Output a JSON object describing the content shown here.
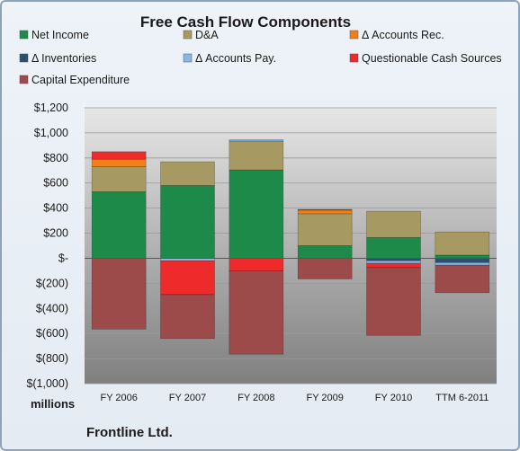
{
  "chart_data": {
    "type": "bar",
    "stacked": true,
    "title": "Free Cash Flow Components",
    "categories": [
      "FY 2006",
      "FY 2007",
      "FY 2008",
      "FY 2009",
      "FY 2010",
      "TTM 6-2011"
    ],
    "series": [
      {
        "name": "Net Income",
        "color": "#1e8a4a",
        "values": [
          530,
          580,
          705,
          100,
          165,
          25
        ]
      },
      {
        "name": "D&A",
        "color": "#a69a62",
        "values": [
          200,
          190,
          230,
          255,
          210,
          185
        ]
      },
      {
        "name": "Δ Accounts Rec.",
        "color": "#f07f18",
        "values": [
          60,
          0,
          0,
          30,
          0,
          0
        ]
      },
      {
        "name": "Δ Inventories",
        "color": "#2c4f6b",
        "values": [
          0,
          0,
          0,
          0,
          -20,
          -35
        ]
      },
      {
        "name": "Δ Accounts Pay.",
        "color": "#8eb4e3",
        "values": [
          0,
          -20,
          10,
          0,
          -20,
          -20
        ]
      },
      {
        "name": "Questionable Cash Sources",
        "color": "#ee2a2a",
        "values": [
          60,
          -270,
          -100,
          5,
          -35,
          0
        ]
      },
      {
        "name": "Capital Expenditure",
        "color": "#9c4a4a",
        "values": [
          -565,
          -350,
          -665,
          -165,
          -540,
          -220
        ]
      }
    ],
    "ylim": [
      -1000,
      1200
    ],
    "yticks": [
      "$1,200",
      "$1,000",
      "$800",
      "$600",
      "$400",
      "$200",
      "$-",
      "$(200)",
      "$(400)",
      "$(600)",
      "$(800)",
      "$(1,000)"
    ],
    "ytick_values": [
      1200,
      1000,
      800,
      600,
      400,
      200,
      0,
      -200,
      -400,
      -600,
      -800,
      -1000
    ],
    "units_label": "millions",
    "company": "Frontline Ltd.",
    "legend_position": "top",
    "grid": true
  }
}
